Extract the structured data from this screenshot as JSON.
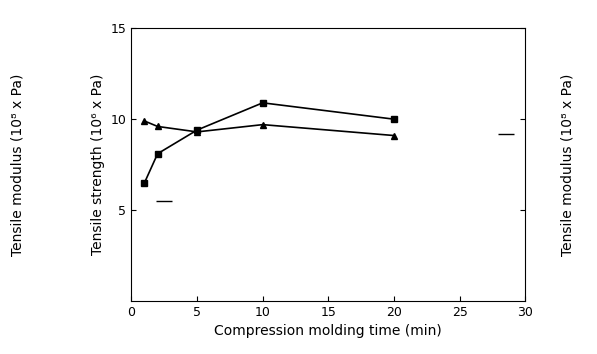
{
  "chart_data": {
    "type": "line",
    "x_label": "Compression molding time (min)",
    "y_label": "Tensile strength (10⁶ x Pa)",
    "y_label_outer": "Tensile modulus (10⁸ x Pa)",
    "y2_label": "Tensile modulus (10⁸ x Pa)",
    "xlim": [
      0,
      30
    ],
    "xticks": [
      0,
      5,
      10,
      15,
      20,
      25,
      30
    ],
    "ylim": [
      0,
      15
    ],
    "yticks": [
      5,
      10,
      15
    ],
    "grid": false,
    "series": [
      {
        "x": [
          1,
          2,
          5,
          10,
          20
        ],
        "values": [
          6.5,
          8.1,
          9.4,
          10.9,
          10.0
        ],
        "color": "#000000",
        "marker": "square",
        "line_style": "solid"
      },
      {
        "x": [
          1,
          2,
          5,
          10,
          20
        ],
        "values": [
          9.9,
          9.6,
          9.3,
          9.7,
          9.1
        ],
        "color": "#000000",
        "marker": "triangle",
        "line_style": "solid"
      },
      {
        "x": [
          2.5,
          28.5
        ],
        "values": [
          5.5,
          9.2
        ],
        "color": "#000000",
        "marker": "dash",
        "line_style": "none"
      }
    ]
  }
}
